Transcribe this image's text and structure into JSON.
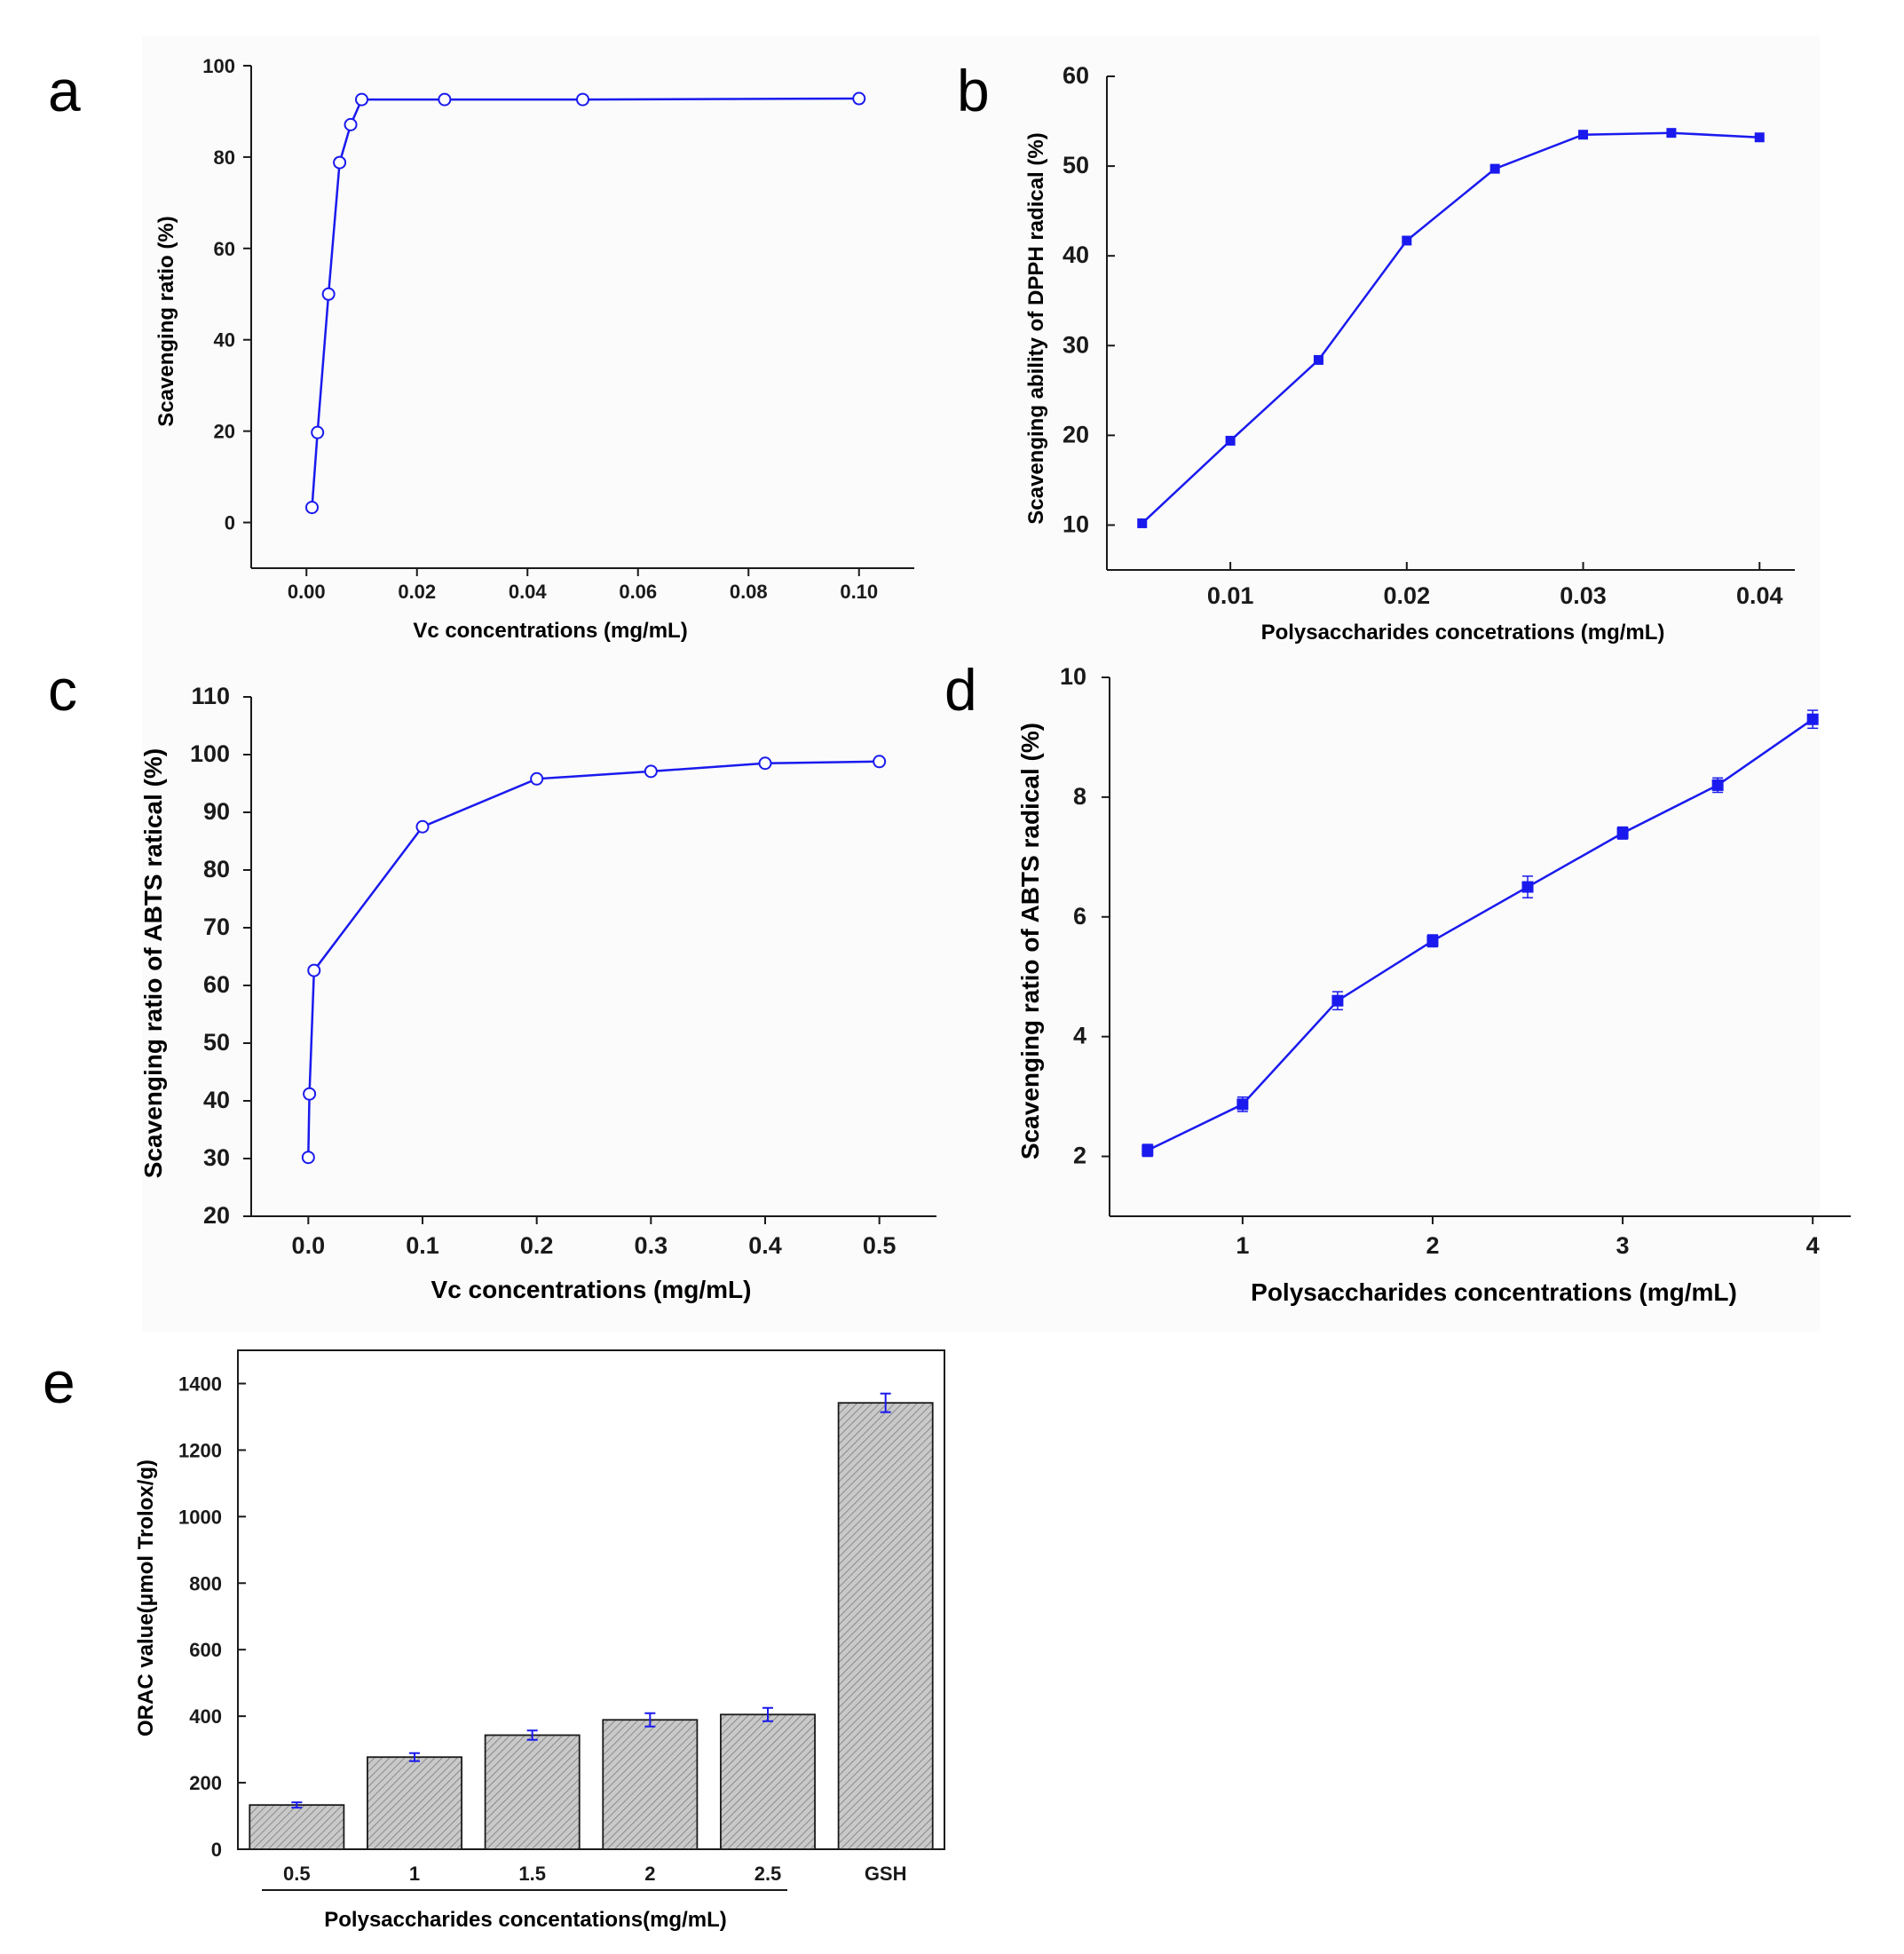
{
  "figure": {
    "series_color": "#1a1aee",
    "axis_color": "#1a1a1a",
    "bar_fill": "#c9c9c9"
  },
  "chart_data": [
    {
      "panel": "a",
      "type": "line",
      "marker": "open-circle",
      "xlabel": "Vc concentrations (mg/mL)",
      "ylabel": "Scavenging ratio (%)",
      "xlim": [
        -0.01,
        0.11
      ],
      "ylim": [
        -10,
        100
      ],
      "xticks": [
        0.0,
        0.02,
        0.04,
        0.06,
        0.08,
        0.1
      ],
      "xtick_labels": [
        "0.00",
        "0.02",
        "0.04",
        "0.06",
        "0.08",
        "0.10"
      ],
      "yticks": [
        0,
        20,
        40,
        60,
        80,
        100
      ],
      "ytick_labels": [
        "0",
        "20",
        "40",
        "60",
        "80",
        "100"
      ],
      "x": [
        0.001,
        0.002,
        0.004,
        0.006,
        0.008,
        0.01,
        0.025,
        0.05,
        0.1
      ],
      "y": [
        3.3,
        19.7,
        50.0,
        78.8,
        87.1,
        92.6,
        92.6,
        92.6,
        92.8
      ]
    },
    {
      "panel": "b",
      "type": "line",
      "marker": "filled-square",
      "xlabel": "Polysaccharides concetrations (mg/mL)",
      "ylabel": "Scavenging ability of DPPH radical (%)",
      "xlim": [
        0.003,
        0.042
      ],
      "ylim": [
        5,
        60
      ],
      "xticks": [
        0.01,
        0.02,
        0.03,
        0.04
      ],
      "xtick_labels": [
        "0.01",
        "0.02",
        "0.03",
        "0.04"
      ],
      "yticks": [
        10,
        20,
        30,
        40,
        50,
        60
      ],
      "ytick_labels": [
        "10",
        "20",
        "30",
        "40",
        "50",
        "60"
      ],
      "x": [
        0.005,
        0.01,
        0.015,
        0.02,
        0.025,
        0.03,
        0.035,
        0.04
      ],
      "y": [
        10.2,
        19.4,
        28.4,
        41.7,
        49.7,
        53.5,
        53.7,
        53.2
      ]
    },
    {
      "panel": "c",
      "type": "line",
      "marker": "open-circle",
      "xlabel": "Vc concentrations (mg/mL)",
      "ylabel": "Scavenging ratio of ABTS ratical (%)",
      "xlim": [
        -0.05,
        0.55
      ],
      "ylim": [
        20,
        110
      ],
      "xticks": [
        0.0,
        0.1,
        0.2,
        0.3,
        0.4,
        0.5
      ],
      "xtick_labels": [
        "0.0",
        "0.1",
        "0.2",
        "0.3",
        "0.4",
        "0.5"
      ],
      "yticks": [
        20,
        30,
        40,
        50,
        60,
        70,
        80,
        90,
        100,
        110
      ],
      "ytick_labels": [
        "20",
        "30",
        "40",
        "50",
        "60",
        "70",
        "80",
        "90",
        "100",
        "110"
      ],
      "x": [
        0.0,
        0.001,
        0.005,
        0.1,
        0.2,
        0.3,
        0.4,
        0.5
      ],
      "y": [
        30.2,
        41.2,
        62.6,
        87.5,
        95.8,
        97.1,
        98.5,
        98.8
      ]
    },
    {
      "panel": "d",
      "type": "line",
      "marker": "filled-square",
      "error_bars": true,
      "xlabel": "Polysaccharides concentrations (mg/mL)",
      "ylabel": "Scavenging ratio of ABTS radical (%)",
      "xlim": [
        0.3,
        4.2
      ],
      "ylim": [
        1,
        10
      ],
      "xticks": [
        1,
        2,
        3,
        4
      ],
      "xtick_labels": [
        "1",
        "2",
        "3",
        "4"
      ],
      "yticks": [
        2,
        4,
        6,
        8,
        10
      ],
      "ytick_labels": [
        "2",
        "4",
        "6",
        "8",
        "10"
      ],
      "x": [
        0.5,
        1.0,
        1.5,
        2.0,
        2.5,
        3.0,
        3.5,
        4.0
      ],
      "y": [
        2.1,
        2.87,
        4.6,
        5.6,
        6.5,
        7.4,
        8.2,
        9.3
      ],
      "err": [
        0.1,
        0.12,
        0.15,
        0.1,
        0.18,
        0.1,
        0.12,
        0.15
      ]
    },
    {
      "panel": "e",
      "type": "bar",
      "error_bars": true,
      "xlabel": "Polysaccharides concentations(mg/mL)",
      "ylabel": "ORAC value(μmol Trolox/g)",
      "ylim": [
        0,
        1500
      ],
      "yticks": [
        0,
        200,
        400,
        600,
        800,
        1000,
        1200,
        1400
      ],
      "ytick_labels": [
        "0",
        "200",
        "400",
        "600",
        "800",
        "1000",
        "1200",
        "1400"
      ],
      "categories": [
        "0.5",
        "1",
        "1.5",
        "2",
        "2.5",
        "GSH"
      ],
      "values": [
        133,
        277,
        343,
        389,
        405,
        1342
      ],
      "err": [
        8,
        12,
        14,
        20,
        20,
        28
      ]
    }
  ]
}
